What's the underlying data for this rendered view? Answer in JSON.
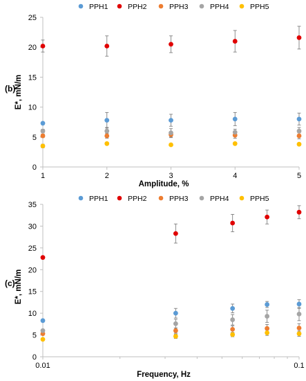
{
  "colors": {
    "PPH1": "#5B9BD5",
    "PPH2": "#E00000",
    "PPH3": "#ED7D31",
    "PPH4": "#A5A5A5",
    "PPH5": "#FFC000",
    "error_bar": "#7F7F7F",
    "axis": "#BFBFBF"
  },
  "chart_data": [
    {
      "type": "scatter",
      "panel_label": "(b)",
      "xlabel": "Amplitude, %",
      "ylabel": "E*, mN/m",
      "xscale": "linear",
      "xlim": [
        1,
        5
      ],
      "ylim": [
        0,
        25
      ],
      "xticks": [
        "1",
        "2",
        "3",
        "4",
        "5"
      ],
      "yticks": [
        "0",
        "5",
        "10",
        "15",
        "20",
        "25"
      ],
      "grid": false,
      "legend": "top",
      "x": [
        1,
        2,
        3,
        4,
        5
      ],
      "series": [
        {
          "name": "PPH1",
          "values": [
            7.3,
            7.8,
            7.8,
            8.0,
            8.0
          ],
          "errors": [
            0.0,
            1.3,
            1.0,
            1.1,
            1.0
          ]
        },
        {
          "name": "PPH2",
          "values": [
            20.2,
            20.2,
            20.5,
            21.0,
            21.6
          ],
          "errors": [
            1.0,
            1.7,
            1.4,
            1.8,
            1.9
          ]
        },
        {
          "name": "PPH3",
          "values": [
            5.2,
            5.2,
            5.4,
            5.3,
            5.2
          ],
          "errors": [
            0.3,
            0.4,
            0.5,
            0.5,
            0.5
          ]
        },
        {
          "name": "PPH4",
          "values": [
            6.0,
            6.0,
            5.7,
            5.8,
            6.0
          ],
          "errors": [
            0.3,
            0.6,
            0.7,
            0.5,
            0.6
          ]
        },
        {
          "name": "PPH5",
          "values": [
            3.5,
            3.9,
            3.7,
            3.9,
            3.8
          ],
          "errors": [
            0.3,
            0.2,
            0.2,
            0.2,
            0.2
          ]
        }
      ]
    },
    {
      "type": "scatter",
      "panel_label": "(c)",
      "xlabel": "Frequency, Hz",
      "ylabel": "E*, mN/m",
      "xscale": "log",
      "xlim": [
        0.01,
        0.1
      ],
      "ylim": [
        0,
        35
      ],
      "xticks": [
        "0.01",
        "0.1"
      ],
      "yticks": [
        "0",
        "5",
        "10",
        "15",
        "20",
        "25",
        "30",
        "35"
      ],
      "grid": false,
      "legend": "top",
      "x": [
        0.01,
        0.033,
        0.055,
        0.075,
        0.1
      ],
      "series": [
        {
          "name": "PPH1",
          "values": [
            8.3,
            10.0,
            11.1,
            12.0,
            12.1
          ],
          "errors": [
            0.0,
            1.1,
            1.0,
            0.7,
            1.0
          ]
        },
        {
          "name": "PPH2",
          "values": [
            22.8,
            28.3,
            30.7,
            32.1,
            33.2
          ],
          "errors": [
            0.0,
            2.2,
            2.0,
            1.6,
            1.5
          ]
        },
        {
          "name": "PPH3",
          "values": [
            5.3,
            6.0,
            6.3,
            6.5,
            6.6
          ],
          "errors": [
            0.0,
            0.6,
            0.8,
            0.9,
            1.0
          ]
        },
        {
          "name": "PPH4",
          "values": [
            6.0,
            7.6,
            8.5,
            9.3,
            9.8
          ],
          "errors": [
            0.0,
            1.0,
            1.2,
            1.4,
            1.5
          ]
        },
        {
          "name": "PPH5",
          "values": [
            4.0,
            4.7,
            5.1,
            5.5,
            5.3
          ],
          "errors": [
            0.0,
            0.5,
            0.5,
            0.6,
            0.6
          ]
        }
      ]
    }
  ]
}
